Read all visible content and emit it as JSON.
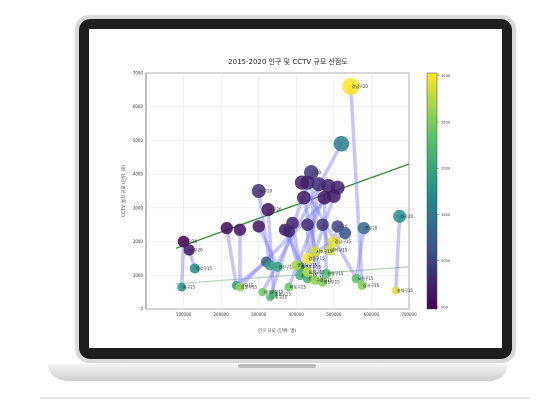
{
  "chart_data": {
    "type": "scatter",
    "title": "2015-2020 인구 및 CCTV 규모 산점도",
    "xlabel": "인구 규모 (단위: 명)",
    "ylabel": "CCTV 설치 규모 (단위: 대)",
    "xlim": [
      0,
      700000
    ],
    "ylim": [
      0,
      7000
    ],
    "x_ticks": [
      "100000",
      "200000",
      "300000",
      "400000",
      "500000",
      "600000",
      "700000"
    ],
    "y_ticks": [
      "0",
      "1000",
      "2000",
      "3000",
      "4000",
      "5000",
      "6000",
      "7000"
    ],
    "grid": true,
    "colorbar": {
      "min": 500,
      "max": 3000,
      "ticks": [
        "500",
        "1000",
        "1500",
        "2000",
        "2500",
        "3000"
      ]
    },
    "points": [
      {
        "label": "강남구20",
        "x": 545000,
        "y": 6600,
        "c": 3000
      },
      {
        "label": "",
        "x": 520000,
        "y": 4900,
        "c": 1500
      },
      {
        "label": "구20",
        "x": 440000,
        "y": 4050,
        "c": 900
      },
      {
        "label": "",
        "x": 430000,
        "y": 3750,
        "c": 800
      },
      {
        "label": "",
        "x": 460000,
        "y": 3700,
        "c": 820
      },
      {
        "label": "",
        "x": 485000,
        "y": 3650,
        "c": 780
      },
      {
        "label": "",
        "x": 510000,
        "y": 3600,
        "c": 760
      },
      {
        "label": "",
        "x": 415000,
        "y": 3750,
        "c": 750
      },
      {
        "label": "동구20",
        "x": 300000,
        "y": 3500,
        "c": 850
      },
      {
        "label": "",
        "x": 420000,
        "y": 3300,
        "c": 700
      },
      {
        "label": "",
        "x": 475000,
        "y": 3300,
        "c": 650
      },
      {
        "label": "",
        "x": 500000,
        "y": 3350,
        "c": 700
      },
      {
        "label": "관구20",
        "x": 325000,
        "y": 2950,
        "c": 600
      },
      {
        "label": "",
        "x": 390000,
        "y": 2550,
        "c": 750
      },
      {
        "label": "",
        "x": 430000,
        "y": 2500,
        "c": 800
      },
      {
        "label": "",
        "x": 470000,
        "y": 2500,
        "c": 900
      },
      {
        "label": "구20",
        "x": 510000,
        "y": 2450,
        "c": 1050
      },
      {
        "label": "",
        "x": 370000,
        "y": 2350,
        "c": 700
      },
      {
        "label": "",
        "x": 380000,
        "y": 2300,
        "c": 780
      },
      {
        "label": "",
        "x": 300000,
        "y": 2450,
        "c": 650
      },
      {
        "label": "",
        "x": 215000,
        "y": 2400,
        "c": 550
      },
      {
        "label": "",
        "x": 250000,
        "y": 2350,
        "c": 600
      },
      {
        "label": "악구20",
        "x": 100000,
        "y": 2000,
        "c": 500
      },
      {
        "label": "로구20",
        "x": 115000,
        "y": 1750,
        "c": 650
      },
      {
        "label": "",
        "x": 530000,
        "y": 2250,
        "c": 1150
      },
      {
        "label": "천구20",
        "x": 580000,
        "y": 2400,
        "c": 1400
      },
      {
        "label": "파구20",
        "x": 675000,
        "y": 2750,
        "c": 1700
      },
      {
        "label": "",
        "x": 320000,
        "y": 1400,
        "c": 1200
      },
      {
        "label": "종로구15",
        "x": 130000,
        "y": 1200,
        "c": 1700
      },
      {
        "label": "중구15",
        "x": 95000,
        "y": 650,
        "c": 1800
      },
      {
        "label": "용산구15",
        "x": 240000,
        "y": 700,
        "c": 1900
      },
      {
        "label": "",
        "x": 330000,
        "y": 1300,
        "c": 1900
      },
      {
        "label": "광진구15",
        "x": 350000,
        "y": 1250,
        "c": 2000
      },
      {
        "label": "동대문구15",
        "x": 410000,
        "y": 1250,
        "c": 2000
      },
      {
        "label": "중랑구15",
        "x": 410000,
        "y": 1000,
        "c": 2100
      },
      {
        "label": "성북구15",
        "x": 430000,
        "y": 900,
        "c": 2100
      },
      {
        "label": "강북구15",
        "x": 330000,
        "y": 350,
        "c": 2200
      },
      {
        "label": "도봉구15",
        "x": 340000,
        "y": 450,
        "c": 2200
      },
      {
        "label": "노원구15",
        "x": 560000,
        "y": 900,
        "c": 2300
      },
      {
        "label": "은평구15",
        "x": 480000,
        "y": 1050,
        "c": 2300
      },
      {
        "label": "서대문구15",
        "x": 310000,
        "y": 500,
        "c": 2400
      },
      {
        "label": "마포구15",
        "x": 380000,
        "y": 650,
        "c": 2400
      },
      {
        "label": "양천구15",
        "x": 470000,
        "y": 800,
        "c": 2500
      },
      {
        "label": "강서구15",
        "x": 575000,
        "y": 700,
        "c": 2500
      },
      {
        "label": "구로구15",
        "x": 450000,
        "y": 850,
        "c": 2600
      },
      {
        "label": "금천구15",
        "x": 250000,
        "y": 650,
        "c": 2600
      },
      {
        "label": "영등포구15",
        "x": 400000,
        "y": 1300,
        "c": 2700
      },
      {
        "label": "동작구15",
        "x": 430000,
        "y": 1100,
        "c": 2700
      },
      {
        "label": "관악구15",
        "x": 490000,
        "y": 1750,
        "c": 2800
      },
      {
        "label": "서초구15",
        "x": 450000,
        "y": 1700,
        "c": 2800
      },
      {
        "label": "강남구15",
        "x": 500000,
        "y": 2000,
        "c": 2900
      },
      {
        "label": "송파구15",
        "x": 665000,
        "y": 550,
        "c": 2900
      },
      {
        "label": "강동구15",
        "x": 430000,
        "y": 1500,
        "c": 3000
      }
    ],
    "links": [
      [
        0,
        43
      ],
      [
        1,
        40
      ],
      [
        2,
        44
      ],
      [
        3,
        36
      ],
      [
        4,
        47
      ],
      [
        5,
        41
      ],
      [
        6,
        45
      ],
      [
        7,
        38
      ],
      [
        8,
        31
      ],
      [
        9,
        42
      ],
      [
        10,
        39
      ],
      [
        11,
        49
      ],
      [
        12,
        37
      ],
      [
        13,
        33
      ],
      [
        14,
        52
      ],
      [
        15,
        48
      ],
      [
        16,
        50
      ],
      [
        17,
        35
      ],
      [
        18,
        34
      ],
      [
        19,
        32
      ],
      [
        20,
        30
      ],
      [
        21,
        45
      ],
      [
        22,
        29
      ],
      [
        23,
        28
      ],
      [
        24,
        46
      ],
      [
        25,
        38
      ],
      [
        26,
        51
      ],
      [
        27,
        30
      ]
    ],
    "trend_lines": [
      {
        "color": "#2e8b2e",
        "x": [
          80000,
          700000
        ],
        "y": [
          1800,
          4300
        ]
      },
      {
        "color": "#b8d8b8",
        "x": [
          80000,
          700000
        ],
        "y": [
          750,
          1250
        ]
      }
    ]
  },
  "colors": {
    "cmap": [
      "#440154",
      "#3b528b",
      "#21918c",
      "#5ec962",
      "#fde725"
    ],
    "link": "#7f7fff",
    "laptop_body": "#dcdcdc",
    "laptop_bezel": "#1e1e1e"
  }
}
